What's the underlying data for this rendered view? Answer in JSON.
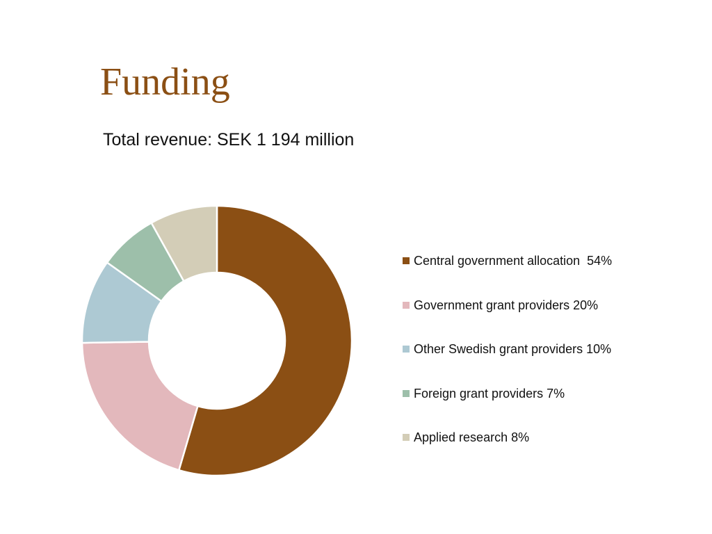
{
  "slide": {
    "title": "Funding",
    "subtitle": "Total revenue: SEK 1 194 million"
  },
  "chart_data": {
    "type": "pie",
    "donut": true,
    "legend_position": "right",
    "categories": [
      "Central government allocation",
      "Government grant providers",
      "Other Swedish grant providers",
      "Foreign grant providers",
      "Applied research"
    ],
    "values": [
      54,
      20,
      10,
      7,
      8
    ],
    "legend_labels": [
      "Central government allocation  54%",
      "Government grant providers 20%",
      "Other Swedish grant providers 10%",
      "Foreign grant providers 7%",
      "Applied research 8%"
    ],
    "colors": [
      "#8B4F14",
      "#E3B8BC",
      "#ADC9D3",
      "#9DBFAA",
      "#D3CDB7"
    ]
  }
}
